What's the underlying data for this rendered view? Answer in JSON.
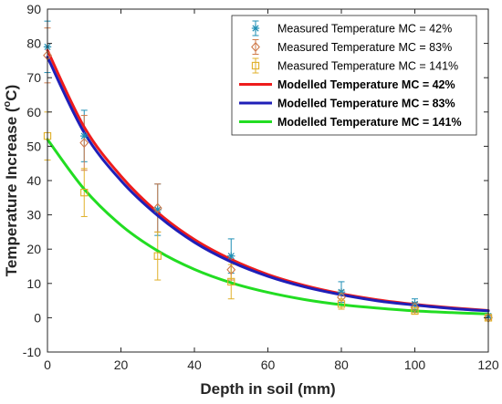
{
  "chart_data": {
    "type": "scatter",
    "title": "",
    "xlabel": "Depth in soil (mm)",
    "ylabel": "Temperature Increase (°C)",
    "ylabel_parts": {
      "pre": "Temperature Increase (",
      "sup": "o",
      "post": "C)"
    },
    "xlim": [
      0,
      120
    ],
    "ylim": [
      -10,
      90
    ],
    "xticks": [
      0,
      20,
      40,
      60,
      80,
      100,
      120
    ],
    "yticks": [
      -10,
      0,
      10,
      20,
      30,
      40,
      50,
      60,
      70,
      80,
      90
    ],
    "grid": false,
    "legend_position": "top-right",
    "series": [
      {
        "name": "Measured Temperature MC = 42%",
        "kind": "measured",
        "marker": "asterisk",
        "color": "#1f8fb5",
        "x": [
          0,
          10,
          30,
          50,
          80,
          100,
          120
        ],
        "y": [
          79,
          53,
          31.5,
          18,
          7.5,
          4,
          0.5
        ],
        "err": [
          7.5,
          7.5,
          7.5,
          5,
          3,
          1.5,
          0.5
        ]
      },
      {
        "name": "Measured Temperature MC = 83%",
        "kind": "measured",
        "marker": "diamond",
        "color": "#cf7a4a",
        "x": [
          0,
          10,
          30,
          50,
          80,
          100,
          120
        ],
        "y": [
          76.5,
          51,
          32,
          14,
          6,
          3,
          0
        ],
        "err": [
          8,
          8,
          7,
          3,
          2,
          1.5,
          0.5
        ]
      },
      {
        "name": "Measured Temperature MC = 141%",
        "kind": "measured",
        "marker": "square",
        "color": "#e0b02a",
        "x": [
          0,
          10,
          30,
          50,
          80,
          100,
          120
        ],
        "y": [
          53,
          36.5,
          18,
          10.5,
          4,
          2,
          0
        ],
        "err": [
          7,
          7,
          7,
          5,
          1.5,
          1,
          0.5
        ]
      },
      {
        "name": "Modelled Temperature MC = 42%",
        "kind": "modelled",
        "color": "#ee1c1c",
        "x": [
          0,
          10,
          20,
          30,
          40,
          50,
          60,
          70,
          80,
          90,
          100,
          110,
          120
        ],
        "y": [
          78,
          55.6,
          41.3,
          30.7,
          22.8,
          17,
          12.6,
          9.4,
          7,
          5.2,
          3.9,
          2.9,
          2.1
        ]
      },
      {
        "name": "Modelled Temperature MC = 83%",
        "kind": "modelled",
        "color": "#1f1fb8",
        "x": [
          0,
          10,
          20,
          30,
          40,
          50,
          60,
          70,
          80,
          90,
          100,
          110,
          120
        ],
        "y": [
          76,
          54,
          40,
          29.8,
          22,
          16.3,
          12.1,
          9,
          6.7,
          4.9,
          3.7,
          2.7,
          2
        ]
      },
      {
        "name": "Modelled Temperature MC = 141%",
        "kind": "modelled",
        "color": "#22dd22",
        "x": [
          0,
          10,
          20,
          30,
          40,
          50,
          60,
          70,
          80,
          90,
          100,
          110,
          120
        ],
        "y": [
          52,
          37.5,
          27,
          19.5,
          14.1,
          10.2,
          7.4,
          5.3,
          3.8,
          2.8,
          2,
          1.5,
          1.1
        ]
      }
    ]
  }
}
